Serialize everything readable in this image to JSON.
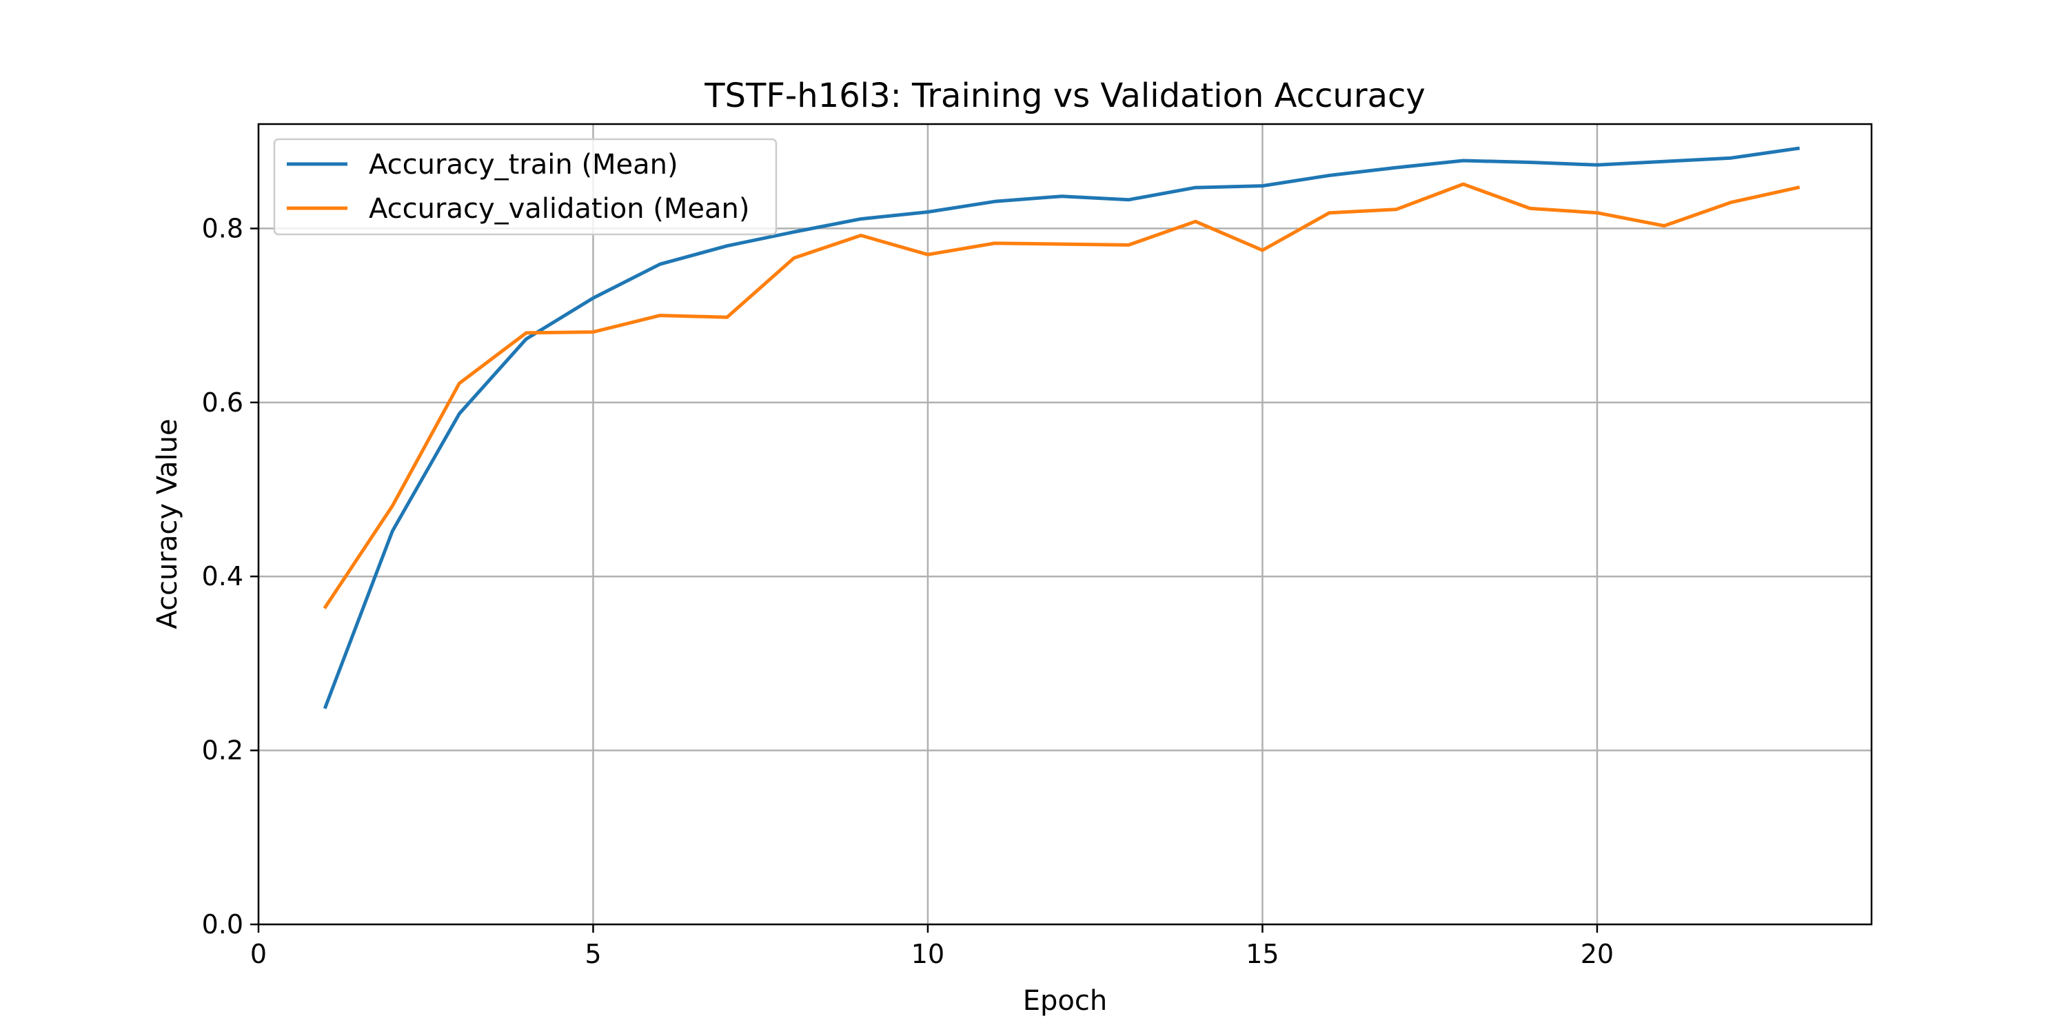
{
  "chart_data": {
    "type": "line",
    "title": "TSTF-h16l3: Training vs Validation Accuracy",
    "xlabel": "Epoch",
    "ylabel": "Accuracy Value",
    "xlim": [
      0,
      24.1
    ],
    "ylim": [
      0,
      0.92
    ],
    "xticks": [
      0,
      5,
      10,
      15,
      20
    ],
    "yticks": [
      0.0,
      0.2,
      0.4,
      0.6,
      0.8
    ],
    "xtick_labels": [
      "0",
      "5",
      "10",
      "15",
      "20"
    ],
    "ytick_labels": [
      "0.0",
      "0.2",
      "0.4",
      "0.6",
      "0.8"
    ],
    "grid": true,
    "legend_position": "upper-left",
    "x": [
      1,
      2,
      3,
      4,
      5,
      6,
      7,
      8,
      9,
      10,
      11,
      12,
      13,
      14,
      15,
      16,
      17,
      18,
      19,
      20,
      21,
      22,
      23
    ],
    "series": [
      {
        "name": "Accuracy_train (Mean)",
        "color": "#1f77b4",
        "values": [
          0.25,
          0.452,
          0.587,
          0.673,
          0.72,
          0.759,
          0.78,
          0.796,
          0.811,
          0.819,
          0.831,
          0.837,
          0.833,
          0.847,
          0.849,
          0.861,
          0.87,
          0.878,
          0.876,
          0.873,
          0.877,
          0.881,
          0.892
        ]
      },
      {
        "name": "Accuracy_validation (Mean)",
        "color": "#ff7f0e",
        "values": [
          0.365,
          0.481,
          0.622,
          0.68,
          0.681,
          0.7,
          0.698,
          0.766,
          0.792,
          0.77,
          0.783,
          0.782,
          0.781,
          0.808,
          0.775,
          0.818,
          0.822,
          0.851,
          0.823,
          0.818,
          0.803,
          0.83,
          0.847
        ]
      }
    ]
  }
}
